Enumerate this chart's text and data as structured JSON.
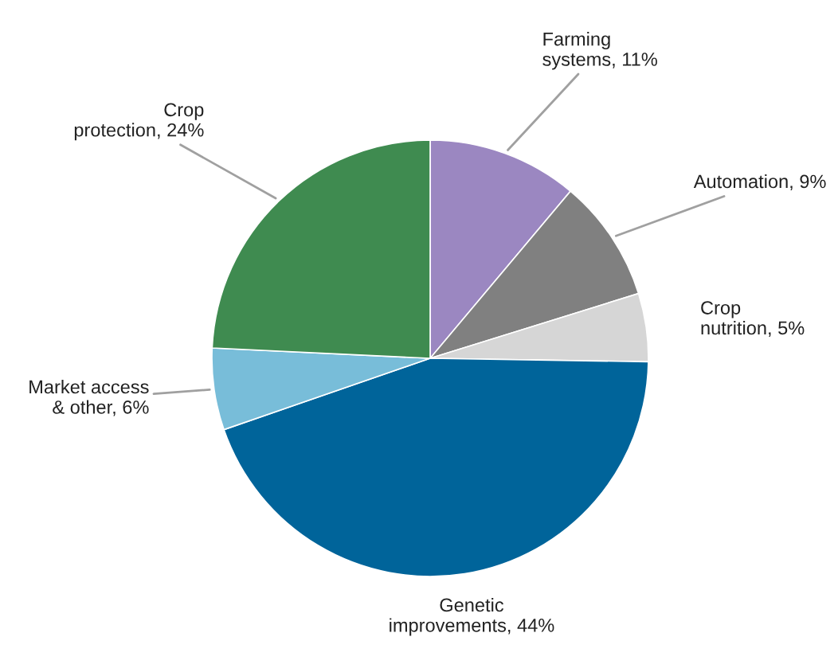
{
  "chart_data": {
    "type": "pie",
    "categories": [
      "Farming\nsystems",
      "Automation",
      "Crop nutrition",
      "Genetic\nimprovements",
      "Market access\n& other",
      "Crop\nprotection"
    ],
    "values": [
      11,
      9,
      5,
      44,
      6,
      24
    ],
    "value_labels": [
      "11%",
      "9%",
      "5%",
      "44%",
      "6%",
      "24%"
    ],
    "colors": [
      "#9b87c1",
      "#808080",
      "#d6d6d6",
      "#00649a",
      "#78bdd9",
      "#3f8b50"
    ],
    "legend": false
  }
}
